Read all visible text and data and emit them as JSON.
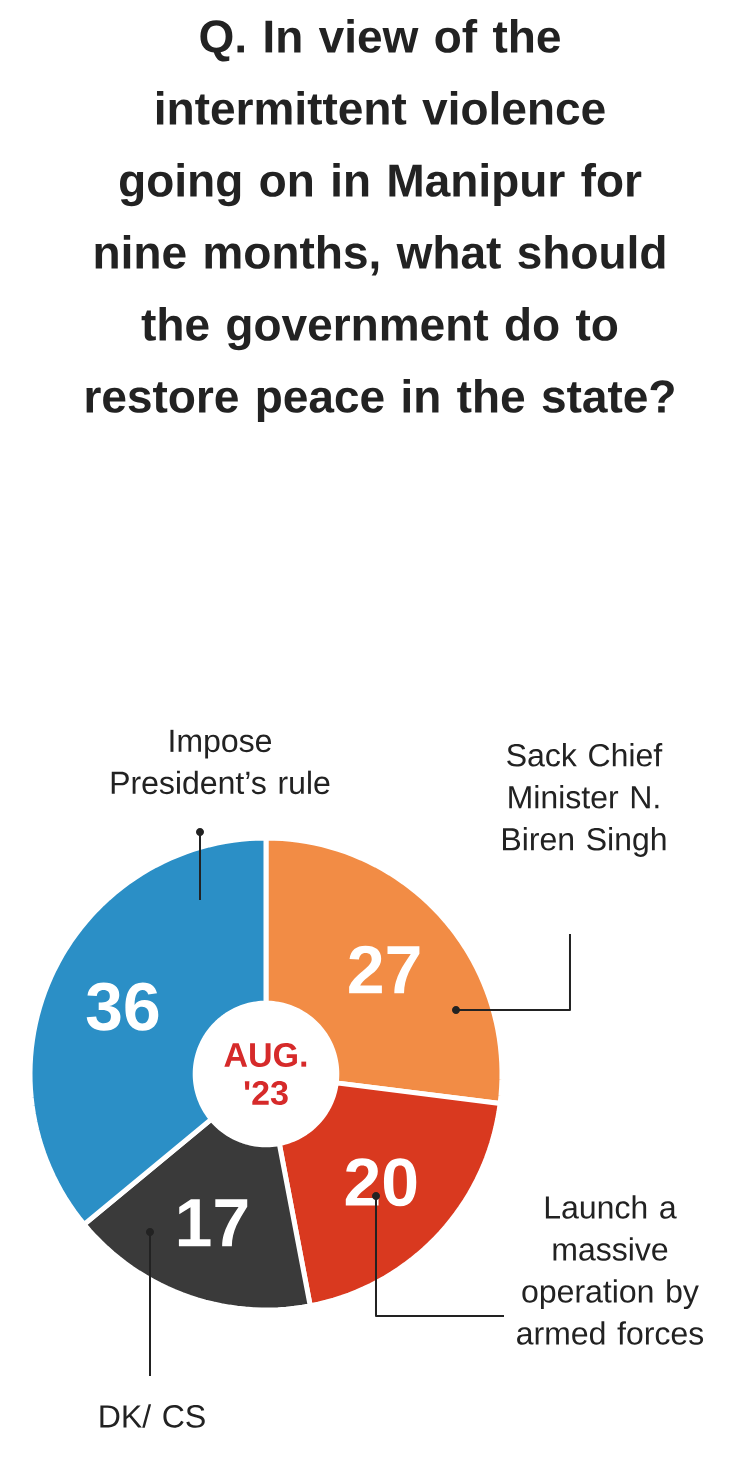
{
  "chart_data": {
    "type": "donut",
    "title": "Q. In view of the intermittent violence going on in Manipur for nine months, what should the government do to restore peace in the state?",
    "categories": [
      "Sack Chief Minister N. Biren Singh",
      "Launch a massive operation by armed forces",
      "DK/ CS",
      "Impose President’s rule"
    ],
    "values": [
      27,
      20,
      17,
      36
    ],
    "colors": [
      "#f28c45",
      "#d9391f",
      "#3a3a3a",
      "#2b8fc6"
    ],
    "data_labels": true,
    "annotations": [
      "AUG. '23"
    ]
  }
}
